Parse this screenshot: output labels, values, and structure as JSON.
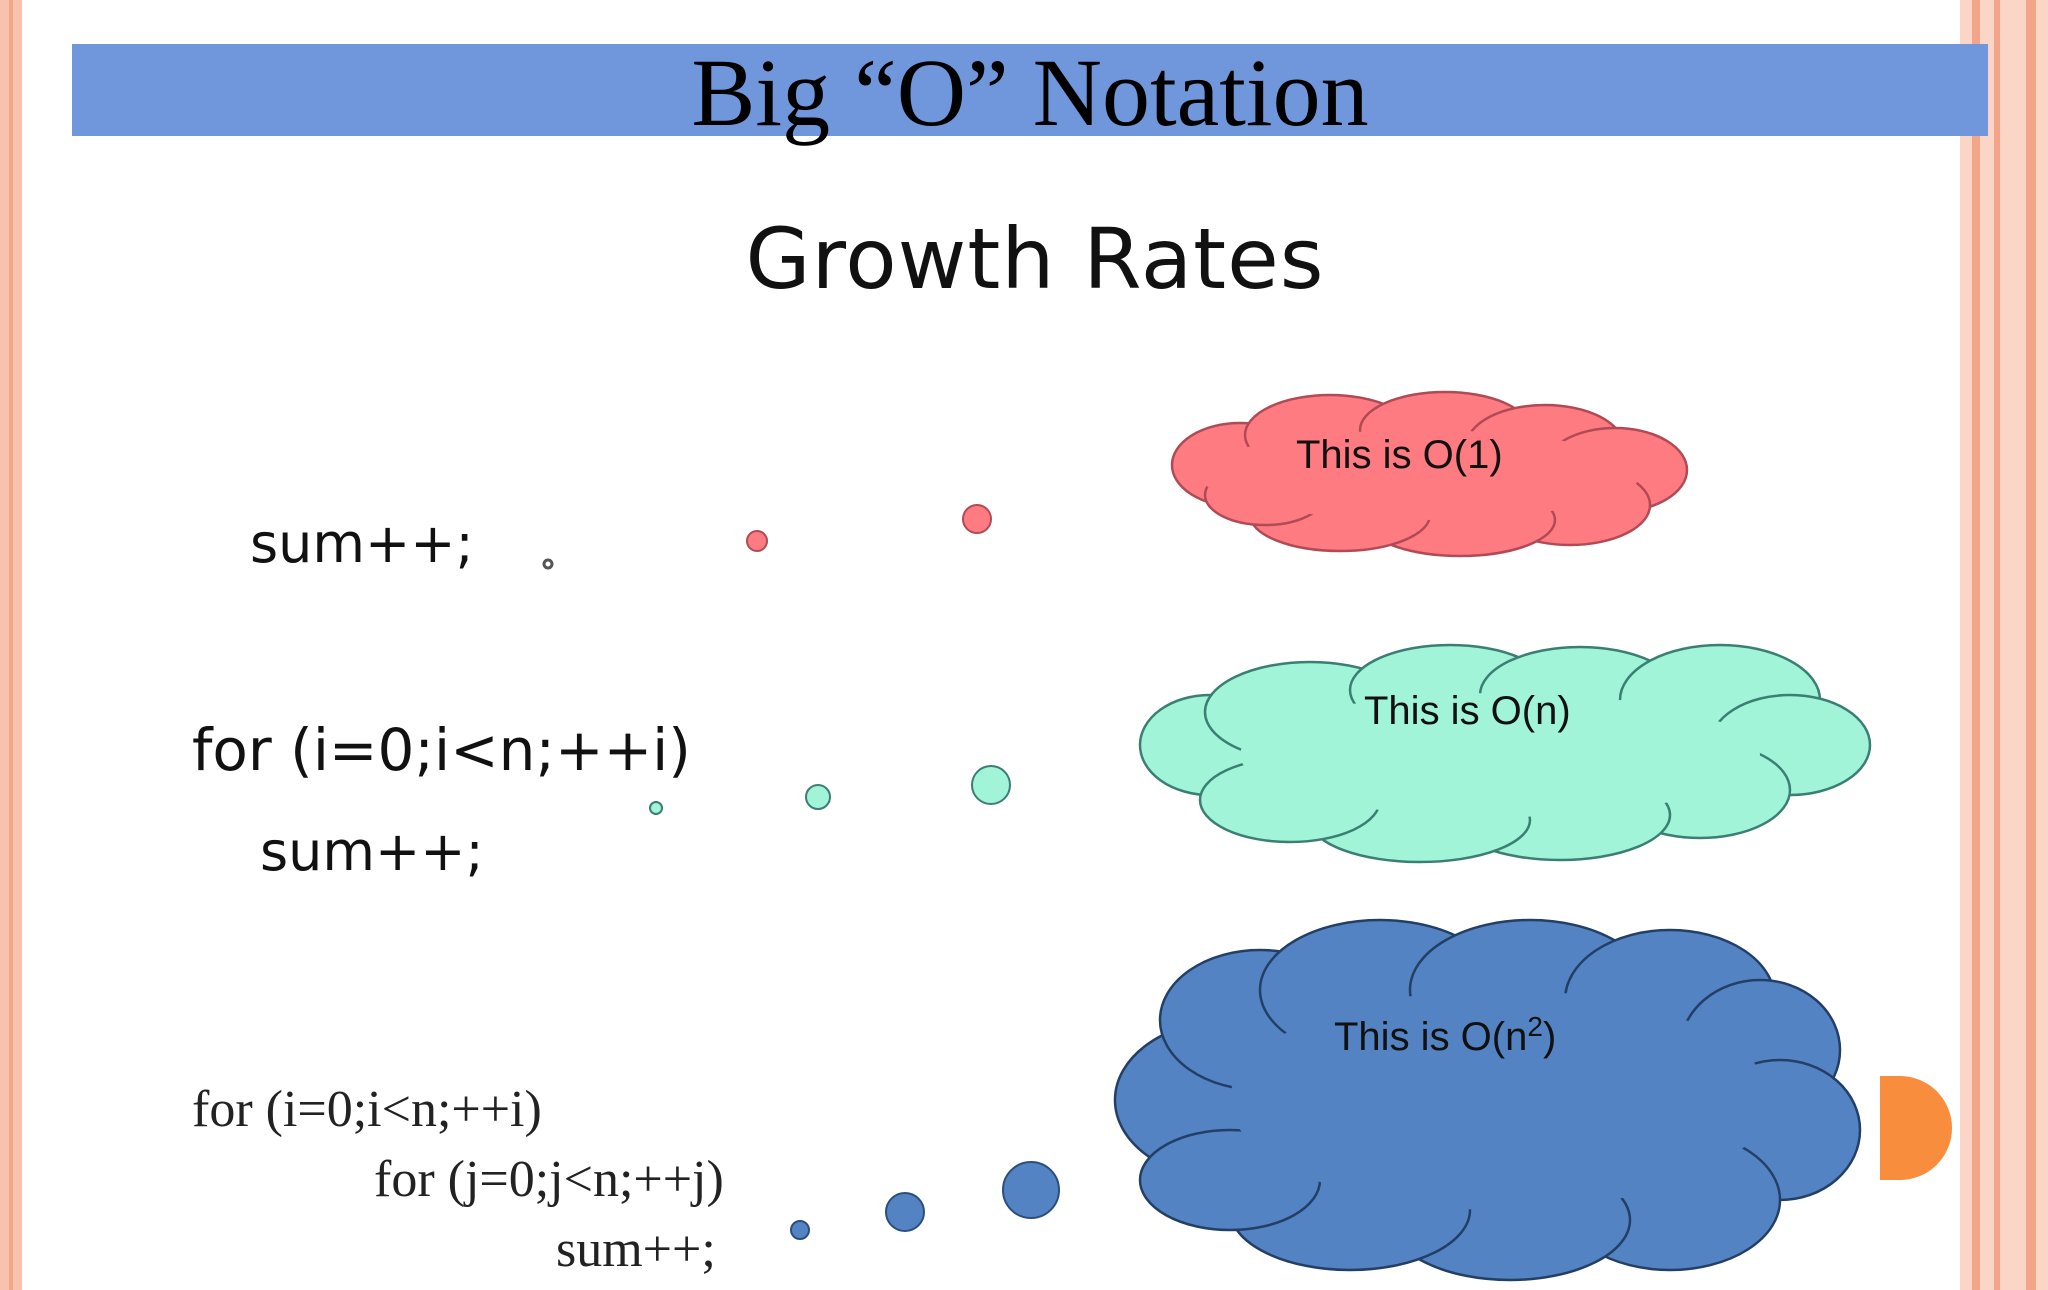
{
  "slide": {
    "title": "Big “O” Notation",
    "heading": "Growth Rates"
  },
  "rows": [
    {
      "code": [
        "sum++;"
      ],
      "bubble_text": "This is O(1)",
      "color": "#ff7b82"
    },
    {
      "code": [
        "for (i=0;i<n;++i)",
        "sum++;"
      ],
      "bubble_text": "This is O(n)",
      "color": "#a1f4d7"
    },
    {
      "code": [
        "for (i=0;i<n;++i)",
        "for (j=0;j<n;++j)",
        "sum++;"
      ],
      "bubble_text": "This is O(n",
      "bubble_sup": "2",
      "bubble_close": ")",
      "color": "#5383c3"
    }
  ],
  "colors": {
    "title_bar": "#7097dc",
    "accent_tab": "#f98d3e",
    "border": "#f8c3ac"
  }
}
